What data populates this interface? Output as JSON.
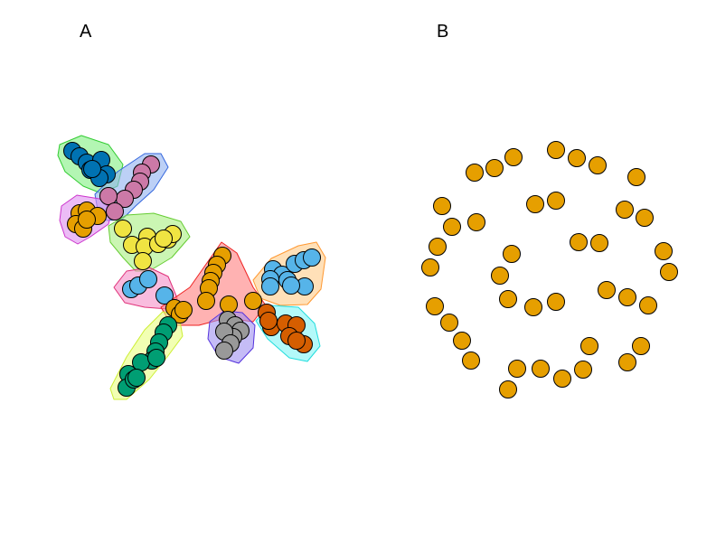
{
  "panels": [
    {
      "label": "A"
    },
    {
      "label": "B"
    }
  ],
  "colors": {
    "node_stroke": "#000000",
    "panel_b_node": "#E69F00",
    "clusters": {
      "dark_blue": {
        "node": "#0072B2",
        "hull_fill": "#80f080",
        "hull_stroke": "#33cc33"
      },
      "pink": {
        "node": "#CC79A7",
        "hull_fill": "#8fb0f0",
        "hull_stroke": "#3366dd"
      },
      "orange_left": {
        "node": "#E69F00",
        "hull_fill": "#e08ff0",
        "hull_stroke": "#cc33cc"
      },
      "yellow": {
        "node": "#F0E442",
        "hull_fill": "#a8f080",
        "hull_stroke": "#66cc33"
      },
      "sky_left": {
        "node": "#56B4E9",
        "hull_fill": "#f590c8",
        "hull_stroke": "#e0337a"
      },
      "orange_center": {
        "node": "#E69F00",
        "hull_fill": "#ff7f7f",
        "hull_stroke": "#ee2222"
      },
      "green": {
        "node": "#009E73",
        "hull_fill": "#eaff80",
        "hull_stroke": "#ccee33"
      },
      "grey": {
        "node": "#999999",
        "hull_fill": "#9f8ff0",
        "hull_stroke": "#5533dd"
      },
      "sky_right": {
        "node": "#56B4E9",
        "hull_fill": "#ffcc88",
        "hull_stroke": "#ff9933"
      },
      "vermillion": {
        "node": "#D55E00",
        "hull_fill": "#80f5f5",
        "hull_stroke": "#22dddd"
      }
    }
  }
}
